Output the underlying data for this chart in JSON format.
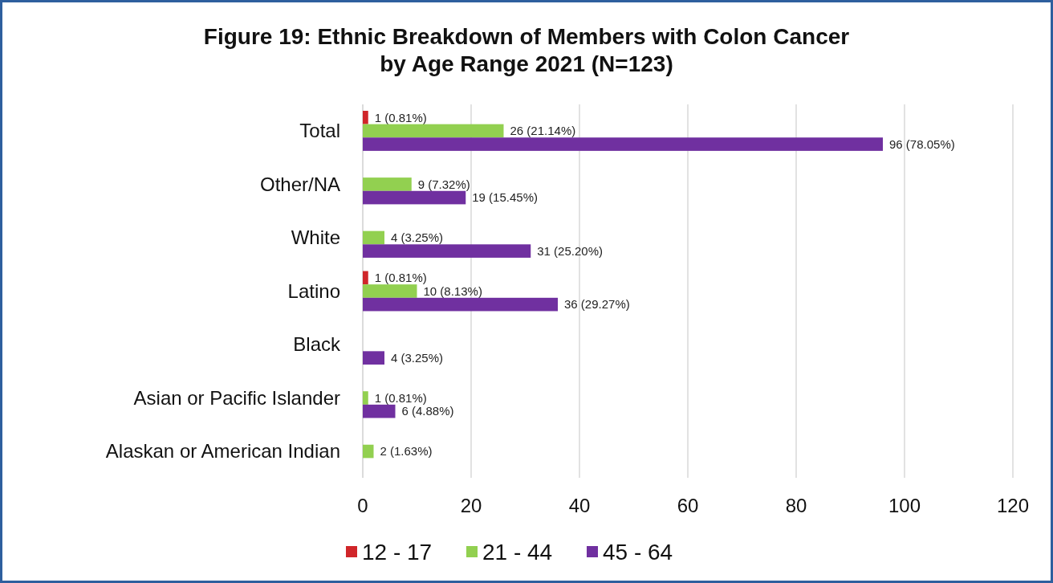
{
  "chart_data": {
    "type": "bar",
    "orientation": "horizontal",
    "title": "Figure 19: Ethnic Breakdown of Members with Colon Cancer by Age Range 2021 (N=123)",
    "categories": [
      "Total",
      "Other/NA",
      "White",
      "Latino",
      "Black",
      "Asian or Pacific Islander",
      "Alaskan or American Indian"
    ],
    "series": [
      {
        "name": "12 - 17",
        "color": "#d0262a",
        "values": [
          1,
          null,
          null,
          1,
          null,
          null,
          null
        ],
        "value_labels": [
          "1 (0.81%)",
          null,
          null,
          "1 (0.81%)",
          null,
          null,
          null
        ]
      },
      {
        "name": "21 - 44",
        "color": "#92d050",
        "values": [
          26,
          9,
          4,
          10,
          null,
          1,
          2
        ],
        "value_labels": [
          "26 (21.14%)",
          "9 (7.32%)",
          "4 (3.25%)",
          "10 (8.13%)",
          null,
          "1 (0.81%)",
          "2 (1.63%)"
        ]
      },
      {
        "name": "45 - 64",
        "color": "#7030a0",
        "values": [
          96,
          19,
          31,
          36,
          4,
          6,
          null
        ],
        "value_labels": [
          "96 (78.05%)",
          "19 (15.45%)",
          "31 (25.20%)",
          "36 (29.27%)",
          "4 (3.25%)",
          "6 (4.88%)",
          null
        ]
      }
    ],
    "xlim": [
      0,
      120
    ],
    "xticks": [
      0,
      20,
      40,
      60,
      80,
      100,
      120
    ],
    "grid": "x",
    "legend": "bottom"
  }
}
